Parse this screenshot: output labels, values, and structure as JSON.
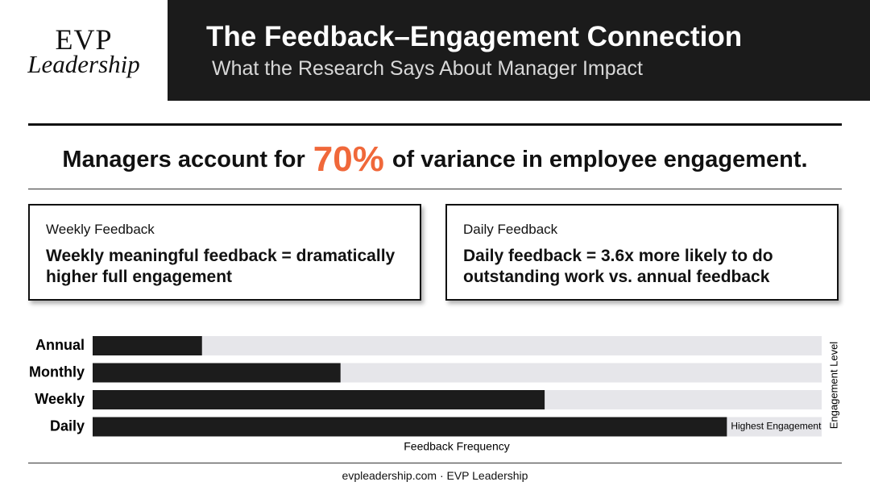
{
  "header": {
    "logo_top": "EVP",
    "logo_bottom": "Leadership",
    "title": "The Feedback–Engagement Connection",
    "subtitle": "What the Research Says About Manager Impact"
  },
  "headline": {
    "before": "Managers account for",
    "highlight": "70%",
    "after": "of variance in employee engagement.",
    "highlight_color": "#f0683a"
  },
  "cards": [
    {
      "label": "Weekly Feedback",
      "text": "Weekly meaningful feedback = dramatically higher full engagement"
    },
    {
      "label": "Daily Feedback",
      "text": "Daily feedback = 3.6x more likely to do outstanding work vs. annual feedback"
    }
  ],
  "chart_data": {
    "type": "bar",
    "orientation": "horizontal",
    "categories": [
      "Annual",
      "Monthly",
      "Weekly",
      "Daily"
    ],
    "values": [
      15,
      34,
      62,
      87
    ],
    "xlim": [
      0,
      100
    ],
    "color": "#1c1c1c",
    "track_color": "#e6e6ea",
    "x_label": "Feedback Frequency",
    "y2_label": "Engagement Level",
    "annotation": "Highest Engagement"
  },
  "footer": "evpleadership.com · EVP Leadership"
}
